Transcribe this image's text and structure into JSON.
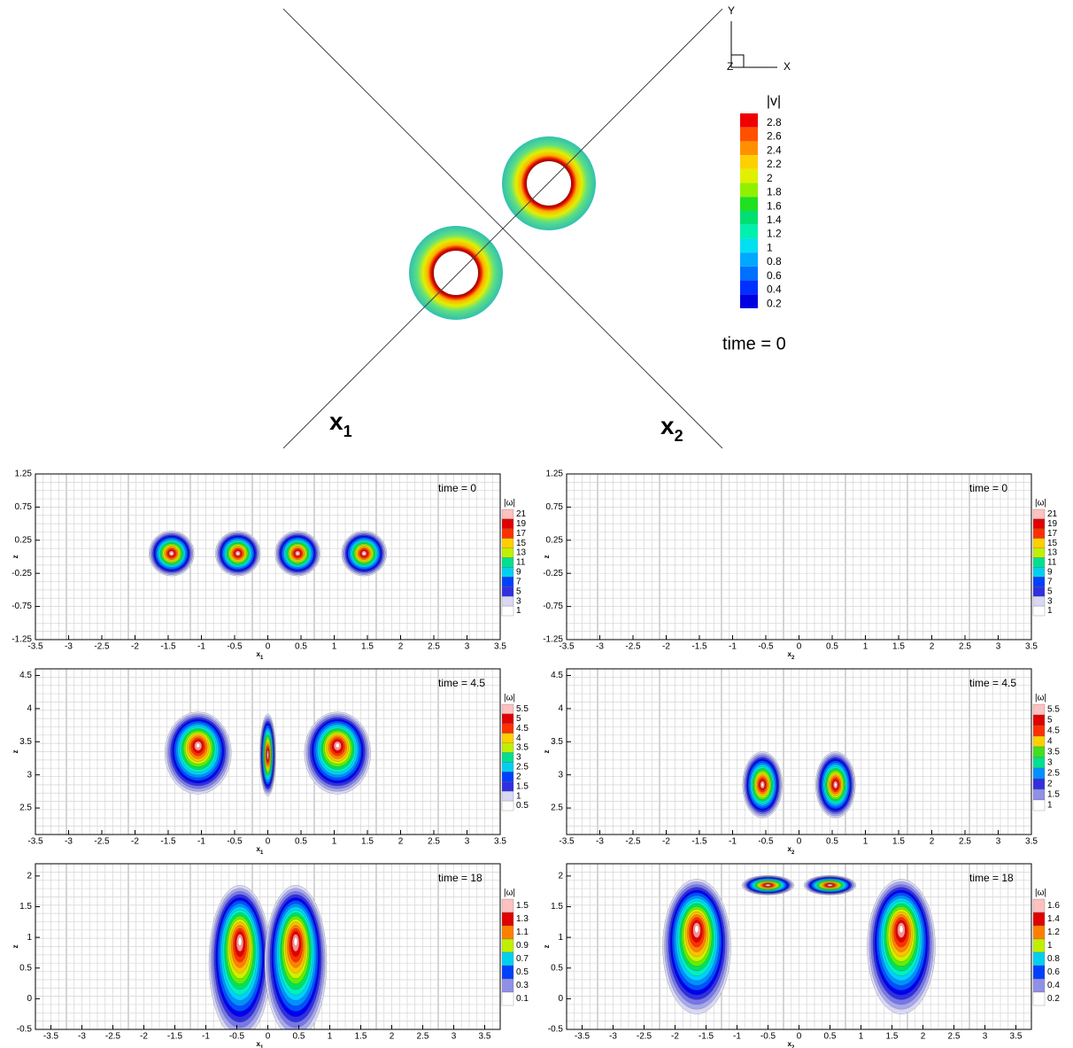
{
  "top": {
    "axis_x": "X",
    "axis_y": "Y",
    "axis_z": "Z",
    "label_1": "x",
    "label_1_sub": "1",
    "label_2": "x",
    "label_2_sub": "2",
    "colorbar_title": "|v|",
    "colorbar_ticks": [
      2.8,
      2.6,
      2.4,
      2.2,
      2,
      1.8,
      1.6,
      1.4,
      1.2,
      1,
      0.8,
      0.6,
      0.4,
      0.2
    ],
    "time": "time = 0"
  },
  "panels": [
    {
      "time": "time = 0",
      "xlabel": "x",
      "xlabel_sub": "1",
      "ylabel": "z",
      "xlim": [
        -3.5,
        3.5
      ],
      "ylim": [
        -1.25,
        1.25
      ],
      "xticks": [
        -3.5,
        -3,
        -2.5,
        -2,
        -1.5,
        -1,
        -0.5,
        0,
        0.5,
        1,
        1.5,
        2,
        2.5,
        3,
        3.5
      ],
      "yticks": [
        1.25,
        0.75,
        0.25,
        -0.25,
        -0.75,
        -1.25
      ],
      "colorbar_title": "|ω|",
      "colorbar_ticks": [
        21,
        19,
        17,
        15,
        13,
        11,
        9,
        7,
        5,
        3,
        1
      ]
    },
    {
      "time": "time = 0",
      "xlabel": "x",
      "xlabel_sub": "2",
      "ylabel": "z",
      "xlim": [
        -3.5,
        3.5
      ],
      "ylim": [
        -1.25,
        1.25
      ],
      "xticks": [
        -3.5,
        -3,
        -2.5,
        -2,
        -1.5,
        -1,
        -0.5,
        0,
        0.5,
        1,
        1.5,
        2,
        2.5,
        3,
        3.5
      ],
      "yticks": [
        1.25,
        0.75,
        0.25,
        -0.25,
        -0.75,
        -1.25
      ],
      "colorbar_title": "|ω|",
      "colorbar_ticks": [
        21,
        19,
        17,
        15,
        13,
        11,
        9,
        7,
        5,
        3,
        1
      ]
    },
    {
      "time": "time = 4.5",
      "xlabel": "x",
      "xlabel_sub": "1",
      "ylabel": "z",
      "xlim": [
        -3.5,
        3.5
      ],
      "ylim": [
        2.1,
        4.6
      ],
      "xticks": [
        -3.5,
        -3,
        -2.5,
        -2,
        -1.5,
        -1,
        -0.5,
        0,
        0.5,
        1,
        1.5,
        2,
        2.5,
        3,
        3.5
      ],
      "yticks": [
        4.5,
        4,
        3.5,
        3,
        2.5
      ],
      "colorbar_title": "|ω|",
      "colorbar_ticks": [
        5.5,
        5,
        4.5,
        4,
        3.5,
        3,
        2.5,
        2,
        1.5,
        1,
        0.5
      ]
    },
    {
      "time": "time = 4.5",
      "xlabel": "x",
      "xlabel_sub": "2",
      "ylabel": "z",
      "xlim": [
        -3.5,
        3.5
      ],
      "ylim": [
        2.1,
        4.6
      ],
      "xticks": [
        -3.5,
        -3,
        -2.5,
        -2,
        -1.5,
        -1,
        -0.5,
        0,
        0.5,
        1,
        1.5,
        2,
        2.5,
        3,
        3.5
      ],
      "yticks": [
        4.5,
        4,
        3.5,
        3,
        2.5
      ],
      "colorbar_title": "|ω|",
      "colorbar_ticks": [
        5.5,
        5,
        4.5,
        4,
        3.5,
        3,
        2.5,
        2,
        1.5,
        1
      ]
    },
    {
      "time": "time = 18",
      "xlabel": "x",
      "xlabel_sub": "1",
      "ylabel": "z",
      "xlim": [
        -3.75,
        3.75
      ],
      "ylim": [
        -0.5,
        2.2
      ],
      "xticks": [
        -3.5,
        -3,
        -2.5,
        -2,
        -1.5,
        -1,
        -0.5,
        0,
        0.5,
        1,
        1.5,
        2,
        2.5,
        3,
        3.5
      ],
      "yticks": [
        2,
        1.5,
        1,
        0.5,
        0,
        -0.5
      ],
      "colorbar_title": "|ω|",
      "colorbar_ticks": [
        1.5,
        1.3,
        1.1,
        0.9,
        0.7,
        0.5,
        0.3,
        0.1
      ]
    },
    {
      "time": "time = 18",
      "xlabel": "x",
      "xlabel_sub": "2",
      "ylabel": "z",
      "xlim": [
        -3.75,
        3.75
      ],
      "ylim": [
        -0.5,
        2.2
      ],
      "xticks": [
        -3.5,
        -3,
        -2.5,
        -2,
        -1.5,
        -1,
        -0.5,
        0,
        0.5,
        1,
        1.5,
        2,
        2.5,
        3,
        3.5
      ],
      "yticks": [
        2,
        1.5,
        1,
        0.5,
        0,
        -0.5
      ],
      "colorbar_title": "|ω|",
      "colorbar_ticks": [
        1.6,
        1.4,
        1.2,
        1,
        0.8,
        0.6,
        0.4,
        0.2
      ]
    }
  ]
}
